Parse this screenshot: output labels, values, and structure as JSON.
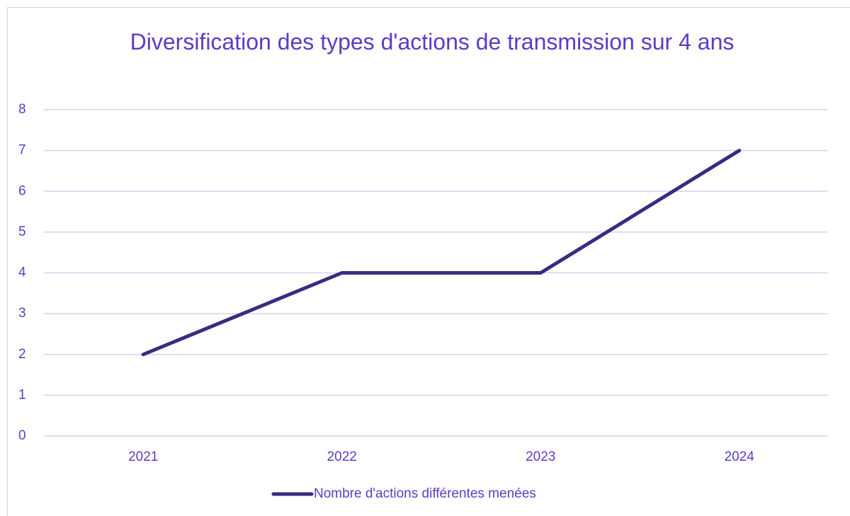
{
  "chart_data": {
    "type": "line",
    "title": "Diversification des types d'actions de transmission sur 4 ans",
    "categories": [
      "2021",
      "2022",
      "2023",
      "2024"
    ],
    "series": [
      {
        "name": "Nombre d'actions différentes menées",
        "color": "#3b2a80",
        "values": [
          2,
          4,
          4,
          7
        ]
      }
    ],
    "ylim": [
      0,
      8
    ],
    "yticks": [
      0,
      1,
      2,
      3,
      4,
      5,
      6,
      7,
      8
    ],
    "grid": true,
    "legend": "bottom"
  }
}
